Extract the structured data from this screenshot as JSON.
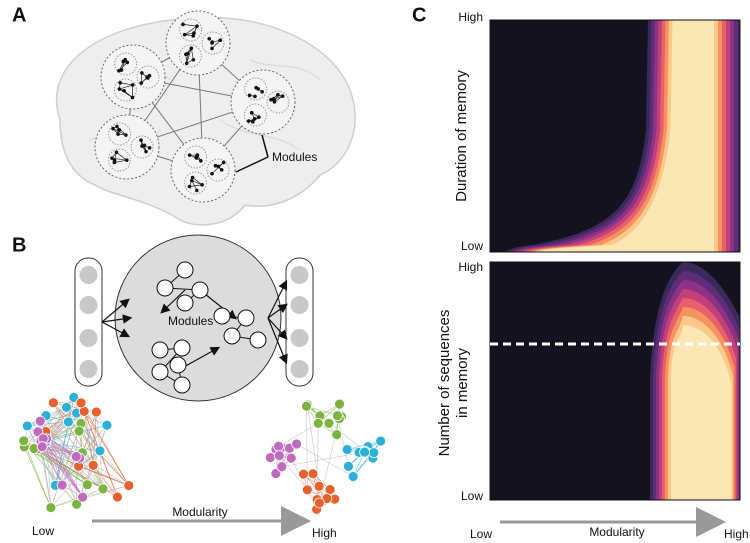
{
  "panels": {
    "a": {
      "label": "A",
      "annotation": "Modules"
    },
    "b": {
      "label": "B",
      "annotation": "Modules",
      "x_axis": {
        "low": "Low",
        "label": "Modularity",
        "high": "High"
      }
    },
    "c": {
      "label": "C",
      "top": {
        "y_label": "Duration of memory",
        "high": "High",
        "low": "Low"
      },
      "bottom": {
        "y_label_lines": [
          "Number of sequences",
          "in memory"
        ],
        "high": "High",
        "low": "Low"
      },
      "x_axis": {
        "low": "Low",
        "label": "Modularity",
        "high": "High"
      }
    }
  }
}
